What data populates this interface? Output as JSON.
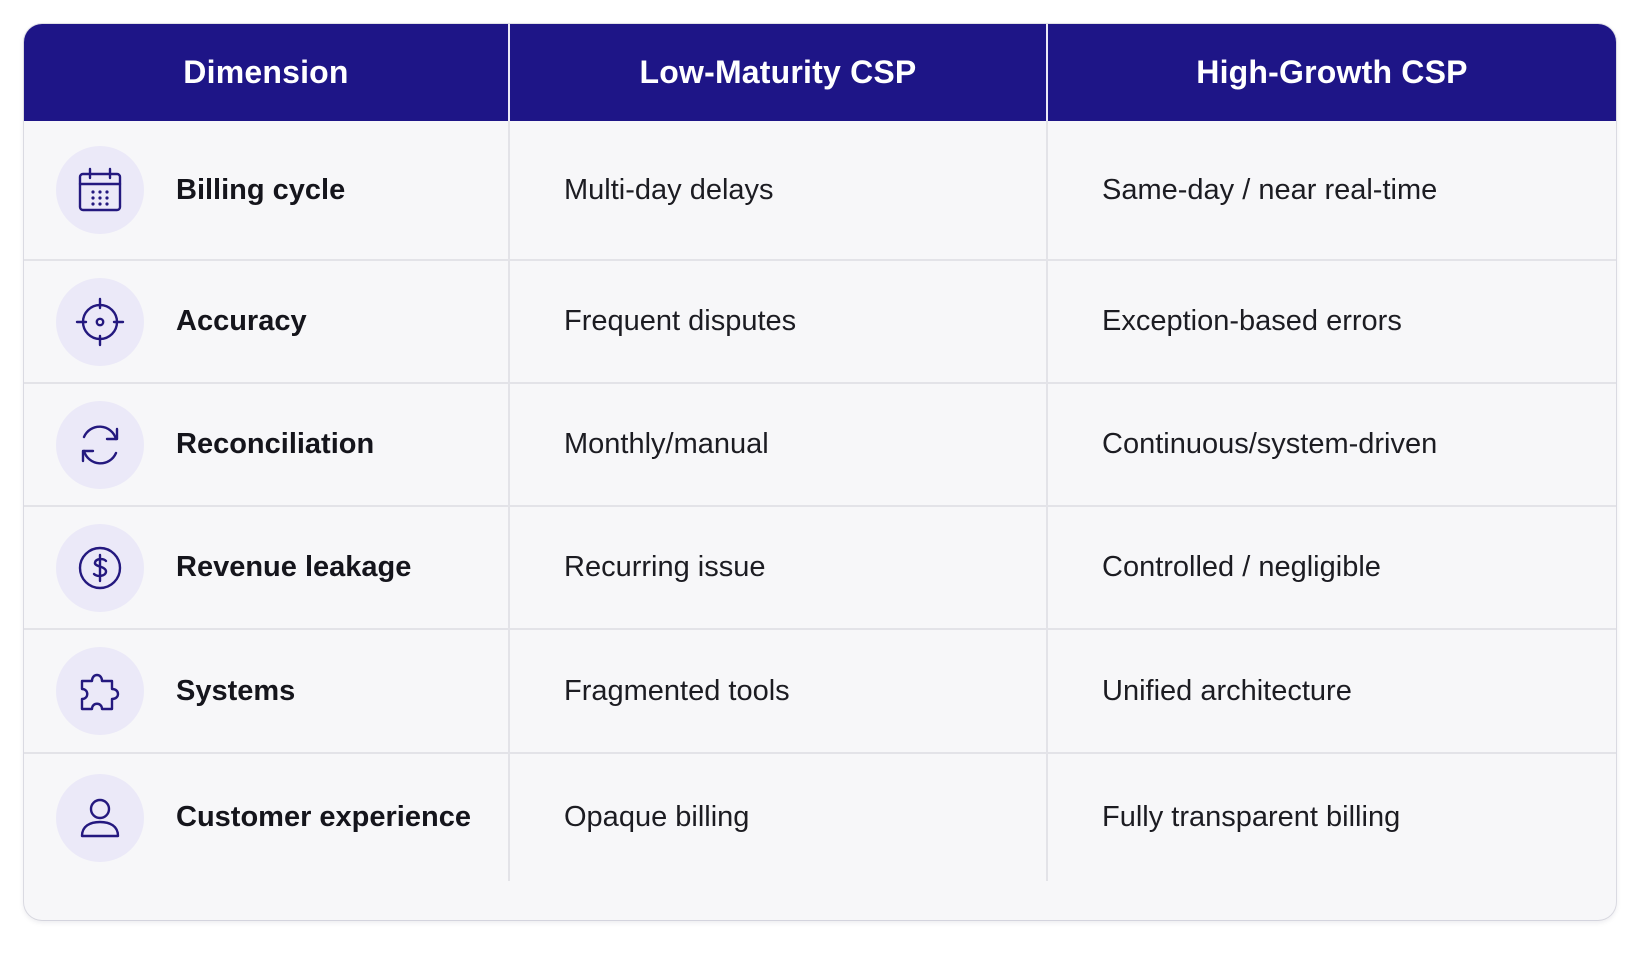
{
  "table": {
    "headers": [
      "Dimension",
      "Low-Maturity CSP",
      "High-Growth CSP"
    ],
    "rows": [
      {
        "icon": "calendar-icon",
        "dimension": "Billing cycle",
        "low": "Multi-day delays",
        "high": "Same-day / near real-time"
      },
      {
        "icon": "target-icon",
        "dimension": "Accuracy",
        "low": "Frequent disputes",
        "high": "Exception-based errors"
      },
      {
        "icon": "refresh-icon",
        "dimension": "Reconciliation",
        "low": "Monthly/manual",
        "high": "Continuous/system-driven"
      },
      {
        "icon": "dollar-icon",
        "dimension": "Revenue leakage",
        "low": "Recurring issue",
        "high": "Controlled / negligible"
      },
      {
        "icon": "puzzle-icon",
        "dimension": "Systems",
        "low": "Fragmented tools",
        "high": "Unified architecture"
      },
      {
        "icon": "user-icon",
        "dimension": "Customer experience",
        "low": "Opaque billing",
        "high": "Fully transparent billing"
      }
    ]
  },
  "colors": {
    "header_bg": "#1e1587",
    "icon_stroke": "#24197f",
    "icon_circle": "#ebe9f8"
  }
}
